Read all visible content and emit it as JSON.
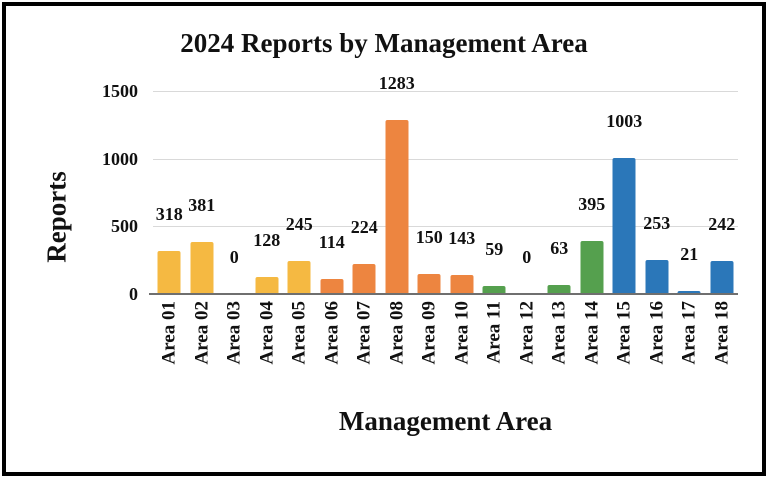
{
  "chart_data": {
    "type": "bar",
    "title": "2024 Reports by Management Area",
    "xlabel": "Management Area",
    "ylabel": "Reports",
    "categories": [
      "Area 01",
      "Area 02",
      "Area 03",
      "Area 04",
      "Area 05",
      "Area 06",
      "Area 07",
      "Area 08",
      "Area 09",
      "Area 10",
      "Area 11",
      "Area 12",
      "Area 13",
      "Area 14",
      "Area 15",
      "Area 16",
      "Area 17",
      "Area 18"
    ],
    "values": [
      318,
      381,
      0,
      128,
      245,
      114,
      224,
      1283,
      150,
      143,
      59,
      0,
      63,
      395,
      1003,
      253,
      21,
      242
    ],
    "color_keys": [
      "gold",
      "gold",
      "gold",
      "gold",
      "gold",
      "orange",
      "orange",
      "orange",
      "orange",
      "orange",
      "green",
      "green",
      "green",
      "green",
      "blue",
      "blue",
      "blue",
      "blue"
    ],
    "palette": {
      "gold": "#F5B942",
      "orange": "#ED8540",
      "green": "#55A04E",
      "blue": "#2B77B9"
    },
    "yticks": [
      0,
      500,
      1000,
      1500
    ],
    "ylim": [
      0,
      1500
    ],
    "grid": true,
    "legend": "none",
    "data_labels": "outside-end",
    "colors": {
      "background": "#ffffff",
      "frame_border": "#000000",
      "text": "#111111",
      "gridline": "#d9d9d9",
      "axis_line": "#6f6f6f"
    }
  }
}
